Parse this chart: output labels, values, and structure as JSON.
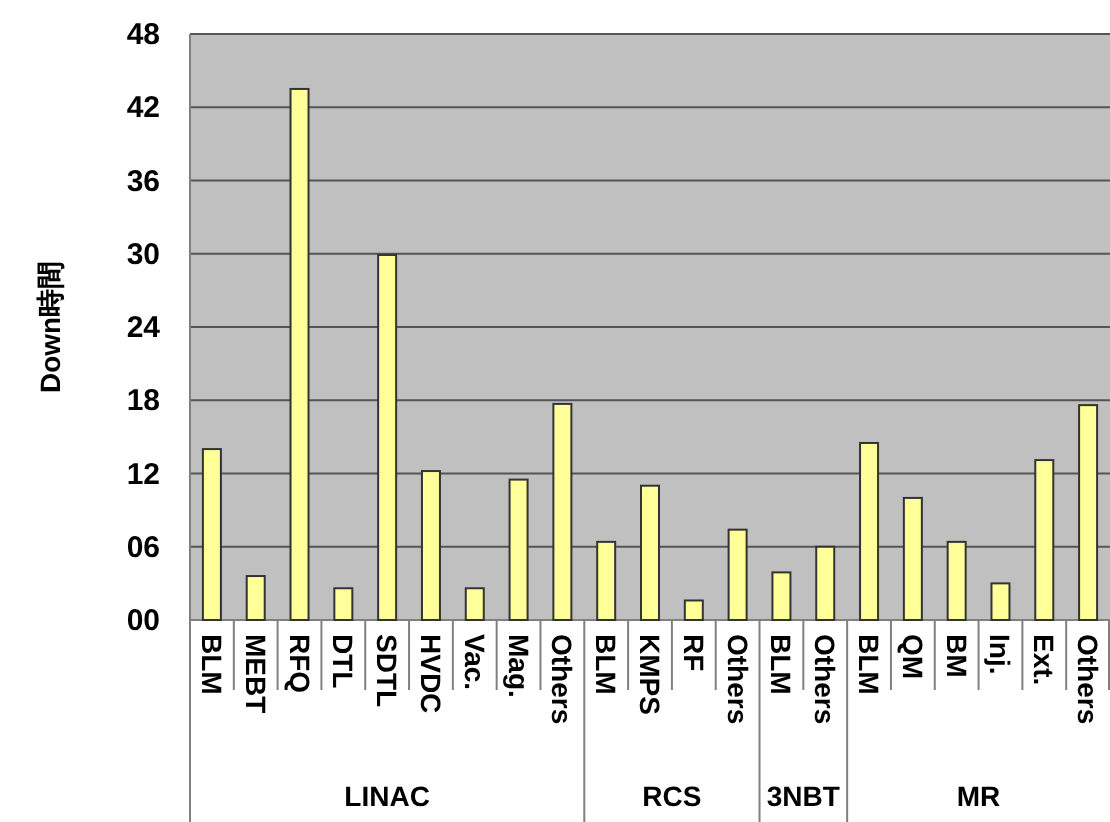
{
  "chart_data": {
    "type": "bar",
    "ylabel": "Down時間",
    "categories": [
      "BLM",
      "MEBT",
      "RFQ",
      "DTL",
      "SDTL",
      "HVDC",
      "Vac.",
      "Mag.",
      "Others",
      "BLM",
      "KMPS",
      "RF",
      "Others",
      "BLM",
      "Others",
      "BLM",
      "QM",
      "BM",
      "Inj.",
      "Ext.",
      "Others"
    ],
    "values": [
      14.0,
      3.6,
      43.5,
      2.6,
      29.9,
      12.2,
      2.6,
      11.5,
      17.7,
      6.4,
      11.0,
      1.6,
      7.4,
      3.9,
      6.0,
      14.5,
      10.0,
      6.4,
      3.0,
      13.1,
      17.6
    ],
    "color": "#ffff99",
    "ylim": [
      0,
      48
    ],
    "yticks": [
      {
        "value": 0,
        "label": "00"
      },
      {
        "value": 6,
        "label": "06"
      },
      12,
      18,
      24,
      30,
      36,
      42,
      48
    ],
    "grid": "y",
    "annotations": [
      "LINAC",
      "RCS",
      "3NBT",
      "MR"
    ]
  }
}
